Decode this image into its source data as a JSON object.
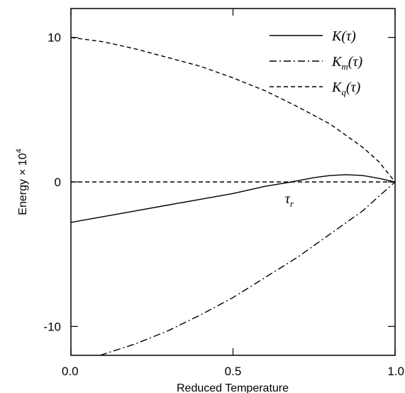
{
  "chart_data": {
    "type": "line",
    "xlabel": "Reduced Temperature",
    "ylabel": "Energy",
    "ylabel_factor": "× 10",
    "ylabel_exponent": "4",
    "xlim": [
      0.0,
      1.0
    ],
    "ylim": [
      -12,
      12
    ],
    "x_ticks": [
      0.0,
      0.5,
      1.0
    ],
    "x_tick_labels": [
      "0.0",
      "0.5",
      "1.0"
    ],
    "y_ticks": [
      -10,
      0,
      10
    ],
    "y_tick_labels": [
      "-10",
      "0",
      "10"
    ],
    "grid": false,
    "legend_position": "top-right",
    "series": [
      {
        "name": "K(τ)",
        "name_main": "K",
        "name_sub": "",
        "name_arg": "(τ)",
        "style": "solid",
        "x": [
          0.0,
          0.1,
          0.2,
          0.3,
          0.4,
          0.5,
          0.6,
          0.68,
          0.75,
          0.8,
          0.85,
          0.9,
          0.95,
          1.0
        ],
        "y": [
          -2.8,
          -2.4,
          -2.0,
          -1.6,
          -1.2,
          -0.8,
          -0.3,
          0.0,
          0.3,
          0.45,
          0.5,
          0.45,
          0.25,
          0.0
        ]
      },
      {
        "name": "Km(τ)",
        "name_main": "K",
        "name_sub": "m",
        "name_arg": "(τ)",
        "style": "dashdot",
        "x": [
          0.09,
          0.2,
          0.3,
          0.4,
          0.5,
          0.6,
          0.7,
          0.8,
          0.9,
          0.95,
          1.0
        ],
        "y": [
          -12.0,
          -11.2,
          -10.3,
          -9.2,
          -8.0,
          -6.6,
          -5.2,
          -3.6,
          -2.0,
          -1.0,
          0.0
        ]
      },
      {
        "name": "Kq(τ)",
        "name_main": "K",
        "name_sub": "q",
        "name_arg": "(τ)",
        "style": "dashed",
        "x": [
          0.0,
          0.1,
          0.2,
          0.3,
          0.4,
          0.5,
          0.6,
          0.7,
          0.8,
          0.9,
          0.95,
          1.0
        ],
        "y": [
          10.0,
          9.7,
          9.2,
          8.6,
          8.0,
          7.2,
          6.3,
          5.2,
          4.0,
          2.4,
          1.4,
          0.0
        ]
      },
      {
        "name": "",
        "style": "dashed",
        "x": [
          0.0,
          1.0
        ],
        "y": [
          0.0,
          0.0
        ]
      }
    ],
    "annotations": [
      {
        "text": "τ",
        "sub": "r",
        "x": 0.68,
        "y": 0.0
      }
    ]
  }
}
